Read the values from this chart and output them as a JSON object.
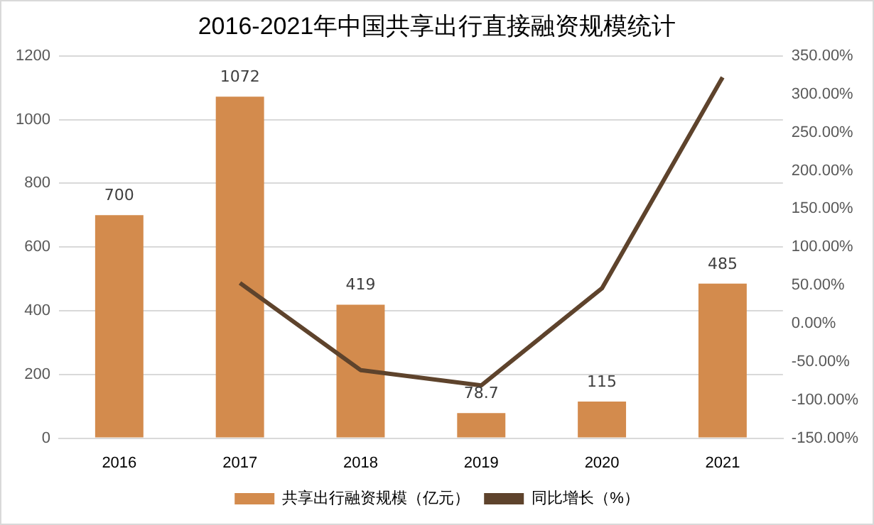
{
  "chart_data": {
    "type": "bar",
    "title": "2016-2021年中国共享出行直接融资规模统计",
    "categories": [
      "2016",
      "2017",
      "2018",
      "2019",
      "2020",
      "2021"
    ],
    "series": [
      {
        "name": "共享出行融资规模（亿元）",
        "color": "#d38b4d",
        "values": [
          700,
          1072,
          419,
          78.7,
          115,
          485
        ],
        "value_labels": [
          "700",
          "1072",
          "419",
          "78.7",
          "115",
          "485"
        ]
      },
      {
        "name": "同比增长（%）",
        "type": "line",
        "axis": "y2",
        "color": "#5e432c",
        "values": [
          null,
          53,
          -61,
          -81,
          46,
          322
        ]
      }
    ],
    "ylim": [
      0,
      1200
    ],
    "yticks": [
      0,
      200,
      400,
      600,
      800,
      1000,
      1200
    ],
    "y2lim": [
      -150,
      350
    ],
    "y2ticks": [
      {
        "value": -150,
        "label": "-150.00%"
      },
      {
        "value": -100,
        "label": "-100.00%"
      },
      {
        "value": -50,
        "label": "-50.00%"
      },
      {
        "value": 0,
        "label": "0.00%"
      },
      {
        "value": 50,
        "label": "50.00%"
      },
      {
        "value": 100,
        "label": "100.00%"
      },
      {
        "value": 150,
        "label": "150.00%"
      },
      {
        "value": 200,
        "label": "200.00%"
      },
      {
        "value": 250,
        "label": "250.00%"
      },
      {
        "value": 300,
        "label": "300.00%"
      },
      {
        "value": 350,
        "label": "350.00%"
      }
    ],
    "grid": "y",
    "legend": "bottom",
    "marker": "none",
    "line_style": "solid"
  }
}
